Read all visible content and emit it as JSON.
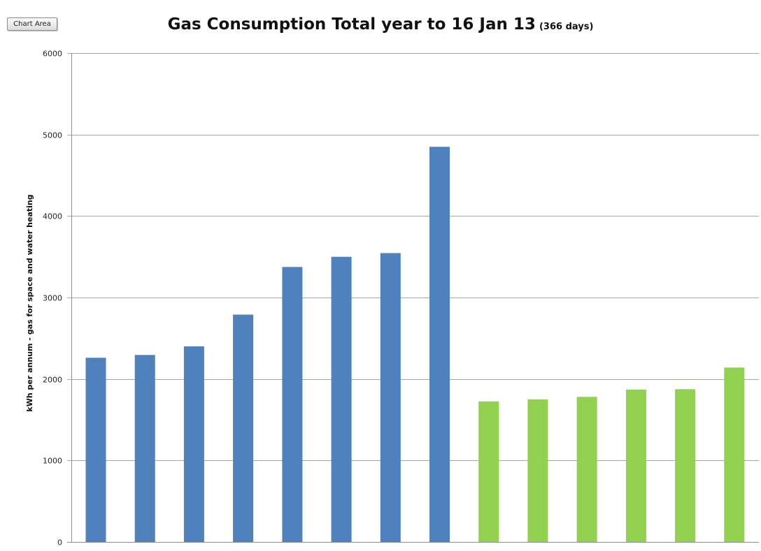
{
  "chart_area_button": {
    "label": "Chart Area"
  },
  "chart_data": {
    "type": "bar",
    "title": "Gas Consumption Total year to 16 Jan 13",
    "subtitle": "(366 days)",
    "xlabel": "",
    "ylabel": "kWh per annum - gas for space and water heating",
    "ylim": [
      0,
      6000
    ],
    "yticks": [
      0,
      1000,
      2000,
      3000,
      4000,
      5000,
      6000
    ],
    "grid": true,
    "legend": "none",
    "series": [
      {
        "color": "#4f81bd",
        "values": [
          2260,
          2295,
          2400,
          2790,
          3375,
          3500,
          3545,
          4850,
          null,
          null,
          null,
          null,
          null,
          null
        ]
      },
      {
        "color": "#92d050",
        "values": [
          null,
          null,
          null,
          null,
          null,
          null,
          null,
          null,
          1725,
          1750,
          1780,
          1870,
          1875,
          2140
        ]
      }
    ]
  }
}
